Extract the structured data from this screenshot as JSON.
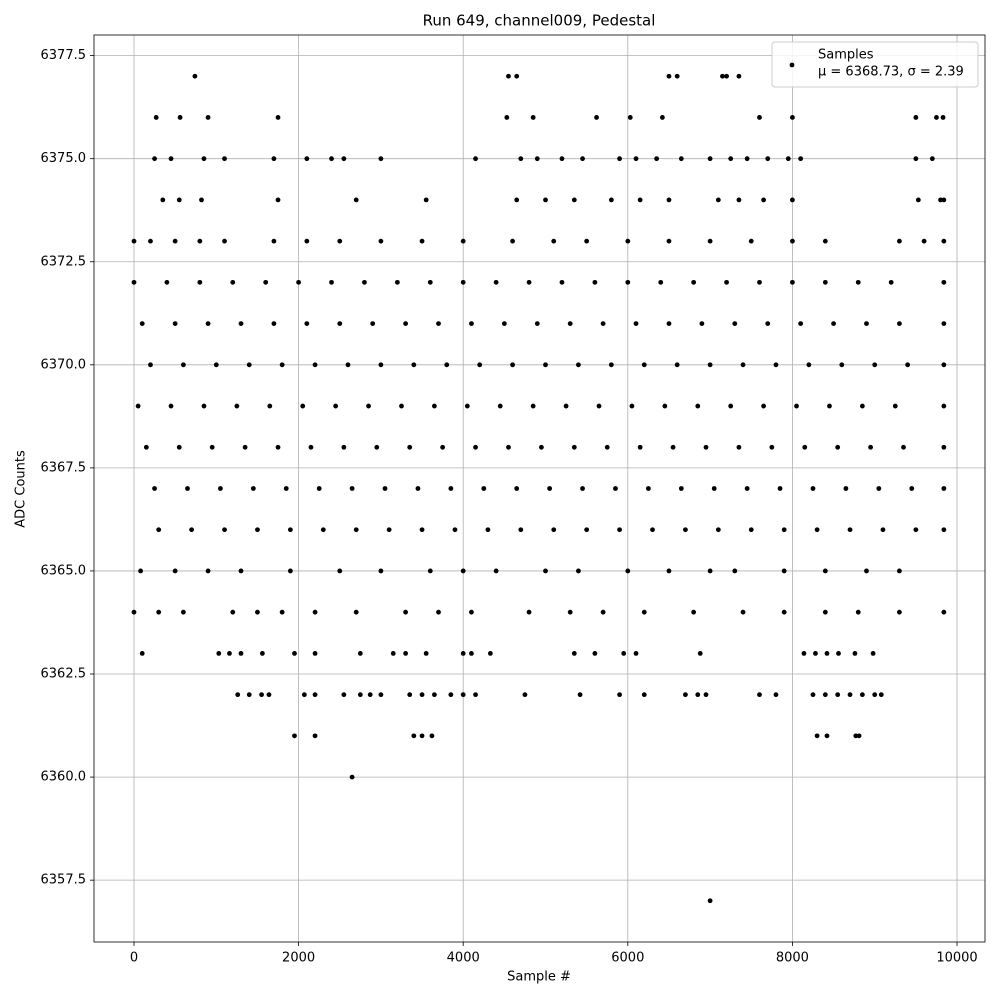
{
  "chart_data": {
    "type": "scatter",
    "title": "Run 649, channel009, Pedestal",
    "x_label": "Sample #",
    "y_label": "ADC Counts",
    "legend_note": "μ = 6368.73, σ = 2.39",
    "legend": "upper right",
    "grid": true,
    "xlim": [
      -486,
      10340
    ],
    "ylim": [
      6356.0,
      6378.0
    ],
    "xticks": [
      0,
      2000,
      4000,
      6000,
      8000,
      10000
    ],
    "yticks": [
      6357.5,
      {
        "value": 6360,
        "label": "6360.0"
      },
      6362.5,
      {
        "value": 6365,
        "label": "6365.0"
      },
      6367.5,
      {
        "value": 6370,
        "label": "6370.0"
      },
      6372.5,
      {
        "value": 6375,
        "label": "6375.0"
      },
      6377.5
    ],
    "series": [
      {
        "name": "Samples",
        "color": "#000000",
        "x": [
          0,
          400,
          800,
          1200,
          1600,
          2000,
          2400,
          2800,
          3200,
          3600,
          4000,
          4400,
          4800,
          5200,
          5600,
          6000,
          6400,
          6800,
          7200,
          7600,
          8000,
          8400,
          8800,
          9200,
          9840,
          100,
          500,
          900,
          1300,
          1700,
          2100,
          2500,
          2900,
          3300,
          3700,
          4100,
          4500,
          4900,
          5300,
          5700,
          6100,
          6500,
          6900,
          7300,
          7700,
          8100,
          8500,
          8900,
          9300,
          9840,
          200,
          600,
          1000,
          1400,
          1800,
          2200,
          2600,
          3000,
          3400,
          3800,
          4200,
          4600,
          5000,
          5400,
          5800,
          6200,
          6600,
          7000,
          7400,
          7800,
          8200,
          8600,
          9000,
          9400,
          9840,
          50,
          450,
          850,
          1250,
          1650,
          2050,
          2450,
          2850,
          3250,
          3650,
          4050,
          4450,
          4850,
          5250,
          5650,
          6050,
          6450,
          6850,
          7250,
          7650,
          8050,
          8450,
          8850,
          9250,
          9840,
          150,
          550,
          950,
          1350,
          1750,
          2150,
          2550,
          2950,
          3350,
          3750,
          4150,
          4550,
          4950,
          5350,
          5750,
          6150,
          6550,
          6950,
          7350,
          7750,
          8150,
          8550,
          8950,
          9350,
          9840,
          250,
          650,
          1050,
          1450,
          1850,
          2250,
          2650,
          3050,
          3450,
          3850,
          4250,
          4650,
          5050,
          5450,
          5850,
          6250,
          6650,
          7050,
          7450,
          7850,
          8250,
          8650,
          9050,
          9450,
          9840,
          300,
          700,
          1100,
          1500,
          1900,
          2300,
          2700,
          3100,
          3500,
          3900,
          4300,
          4700,
          5100,
          5500,
          5900,
          6300,
          6700,
          7100,
          7500,
          7900,
          8300,
          8700,
          9100,
          9500,
          9840,
          0,
          200,
          500,
          800,
          1100,
          1700,
          2100,
          2500,
          3000,
          3500,
          4000,
          4600,
          5100,
          5500,
          6000,
          6500,
          7000,
          7500,
          8000,
          8400,
          9300,
          9600,
          9840,
          0,
          300,
          600,
          1200,
          1500,
          1800,
          2200,
          2700,
          3300,
          3700,
          4100,
          4800,
          5300,
          5700,
          6200,
          6800,
          7400,
          7900,
          8400,
          8800,
          9300,
          9840,
          80,
          500,
          900,
          1300,
          1900,
          2500,
          3000,
          3600,
          4000,
          4400,
          5000,
          5400,
          6000,
          6500,
          7000,
          7300,
          7900,
          8400,
          8900,
          9300,
          740,
          4550,
          4650,
          6500,
          6600,
          7150,
          7200,
          7350,
          270,
          560,
          900,
          1750,
          4530,
          4850,
          5620,
          6030,
          6420,
          7600,
          8000,
          9500,
          9750,
          9830,
          250,
          450,
          850,
          1100,
          1700,
          2100,
          2400,
          2550,
          3000,
          4150,
          4700,
          4900,
          5200,
          5450,
          5900,
          6100,
          6350,
          6650,
          7000,
          7250,
          7450,
          7700,
          7950,
          8100,
          9500,
          9700,
          350,
          550,
          820,
          1750,
          2700,
          3550,
          4650,
          5000,
          5350,
          5800,
          6150,
          6500,
          7100,
          7350,
          7650,
          8000,
          9530,
          9800,
          9840,
          100,
          1030,
          1160,
          1300,
          1560,
          1950,
          2200,
          2750,
          3150,
          3300,
          3550,
          4000,
          4100,
          4330,
          5350,
          5600,
          5950,
          6100,
          6880,
          8140,
          8280,
          8420,
          8560,
          8760,
          8980,
          1260,
          1400,
          1550,
          1640,
          2070,
          2200,
          2550,
          2750,
          2870,
          3000,
          3350,
          3500,
          3650,
          3850,
          4000,
          4150,
          4750,
          5420,
          5900,
          6200,
          6700,
          6850,
          6950,
          7600,
          7800,
          8250,
          8400,
          8550,
          8700,
          8850,
          9000,
          9080,
          1950,
          2200,
          3400,
          3500,
          3620,
          8300,
          8420,
          8770,
          8810,
          2650,
          7000
        ],
        "values": [
          6372,
          6372,
          6372,
          6372,
          6372,
          6372,
          6372,
          6372,
          6372,
          6372,
          6372,
          6372,
          6372,
          6372,
          6372,
          6372,
          6372,
          6372,
          6372,
          6372,
          6372,
          6372,
          6372,
          6372,
          6372,
          6371,
          6371,
          6371,
          6371,
          6371,
          6371,
          6371,
          6371,
          6371,
          6371,
          6371,
          6371,
          6371,
          6371,
          6371,
          6371,
          6371,
          6371,
          6371,
          6371,
          6371,
          6371,
          6371,
          6371,
          6371,
          6370,
          6370,
          6370,
          6370,
          6370,
          6370,
          6370,
          6370,
          6370,
          6370,
          6370,
          6370,
          6370,
          6370,
          6370,
          6370,
          6370,
          6370,
          6370,
          6370,
          6370,
          6370,
          6370,
          6370,
          6370,
          6369,
          6369,
          6369,
          6369,
          6369,
          6369,
          6369,
          6369,
          6369,
          6369,
          6369,
          6369,
          6369,
          6369,
          6369,
          6369,
          6369,
          6369,
          6369,
          6369,
          6369,
          6369,
          6369,
          6369,
          6369,
          6368,
          6368,
          6368,
          6368,
          6368,
          6368,
          6368,
          6368,
          6368,
          6368,
          6368,
          6368,
          6368,
          6368,
          6368,
          6368,
          6368,
          6368,
          6368,
          6368,
          6368,
          6368,
          6368,
          6368,
          6368,
          6367,
          6367,
          6367,
          6367,
          6367,
          6367,
          6367,
          6367,
          6367,
          6367,
          6367,
          6367,
          6367,
          6367,
          6367,
          6367,
          6367,
          6367,
          6367,
          6367,
          6367,
          6367,
          6367,
          6367,
          6367,
          6366,
          6366,
          6366,
          6366,
          6366,
          6366,
          6366,
          6366,
          6366,
          6366,
          6366,
          6366,
          6366,
          6366,
          6366,
          6366,
          6366,
          6366,
          6366,
          6366,
          6366,
          6366,
          6366,
          6366,
          6366,
          6373,
          6373,
          6373,
          6373,
          6373,
          6373,
          6373,
          6373,
          6373,
          6373,
          6373,
          6373,
          6373,
          6373,
          6373,
          6373,
          6373,
          6373,
          6373,
          6373,
          6373,
          6373,
          6373,
          6364,
          6364,
          6364,
          6364,
          6364,
          6364,
          6364,
          6364,
          6364,
          6364,
          6364,
          6364,
          6364,
          6364,
          6364,
          6364,
          6364,
          6364,
          6364,
          6364,
          6364,
          6364,
          6365,
          6365,
          6365,
          6365,
          6365,
          6365,
          6365,
          6365,
          6365,
          6365,
          6365,
          6365,
          6365,
          6365,
          6365,
          6365,
          6365,
          6365,
          6365,
          6365,
          6377,
          6377,
          6377,
          6377,
          6377,
          6377,
          6377,
          6377,
          6376,
          6376,
          6376,
          6376,
          6376,
          6376,
          6376,
          6376,
          6376,
          6376,
          6376,
          6376,
          6376,
          6376,
          6375,
          6375,
          6375,
          6375,
          6375,
          6375,
          6375,
          6375,
          6375,
          6375,
          6375,
          6375,
          6375,
          6375,
          6375,
          6375,
          6375,
          6375,
          6375,
          6375,
          6375,
          6375,
          6375,
          6375,
          6375,
          6375,
          6374,
          6374,
          6374,
          6374,
          6374,
          6374,
          6374,
          6374,
          6374,
          6374,
          6374,
          6374,
          6374,
          6374,
          6374,
          6374,
          6374,
          6374,
          6374,
          6363,
          6363,
          6363,
          6363,
          6363,
          6363,
          6363,
          6363,
          6363,
          6363,
          6363,
          6363,
          6363,
          6363,
          6363,
          6363,
          6363,
          6363,
          6363,
          6363,
          6363,
          6363,
          6363,
          6363,
          6363,
          6362,
          6362,
          6362,
          6362,
          6362,
          6362,
          6362,
          6362,
          6362,
          6362,
          6362,
          6362,
          6362,
          6362,
          6362,
          6362,
          6362,
          6362,
          6362,
          6362,
          6362,
          6362,
          6362,
          6362,
          6362,
          6362,
          6362,
          6362,
          6362,
          6362,
          6362,
          6362,
          6361,
          6361,
          6361,
          6361,
          6361,
          6361,
          6361,
          6361,
          6361,
          6360,
          6357
        ]
      }
    ]
  }
}
